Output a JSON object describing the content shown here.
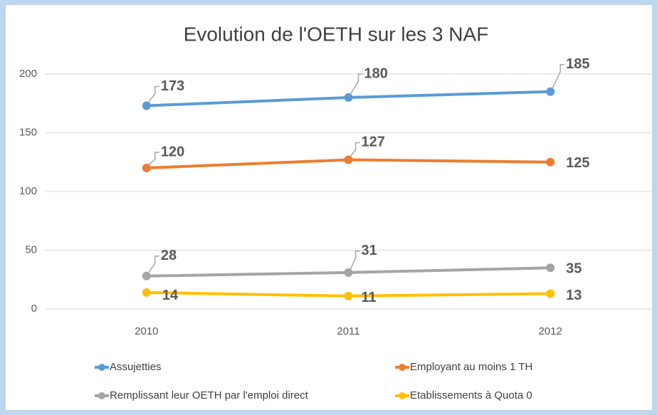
{
  "chart_data": {
    "type": "line",
    "title": "Evolution de l'OETH sur les 3 NAF",
    "categories": [
      "2010",
      "2011",
      "2012"
    ],
    "series": [
      {
        "name": "Assujetties",
        "color": "#5b9bd5",
        "values": [
          173,
          180,
          185
        ]
      },
      {
        "name": "Employant au moins 1 TH",
        "color": "#ed7d31",
        "values": [
          120,
          127,
          125
        ]
      },
      {
        "name": "Remplissant leur OETH par l'emploi direct",
        "color": "#a5a5a5",
        "values": [
          28,
          31,
          35
        ]
      },
      {
        "name": "Etablissements à Quota 0",
        "color": "#ffc000",
        "values": [
          14,
          11,
          13
        ]
      }
    ],
    "ylim": [
      0,
      200
    ],
    "yticks": [
      0,
      50,
      100,
      150,
      200
    ],
    "grid": true,
    "legend": "bottom"
  }
}
